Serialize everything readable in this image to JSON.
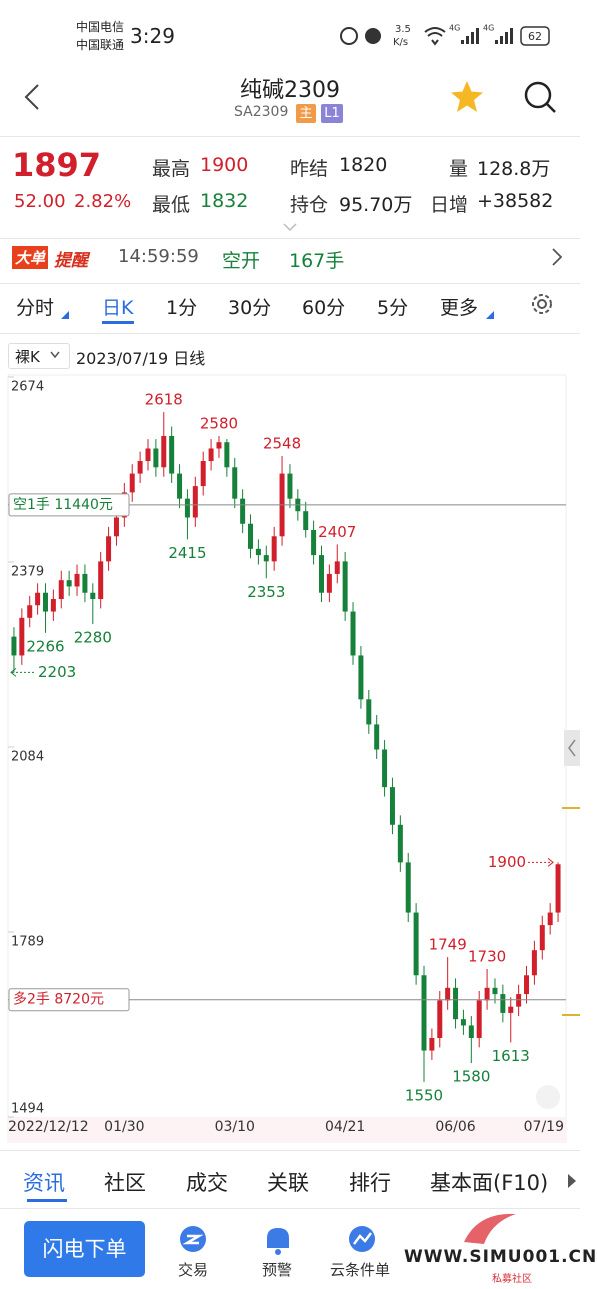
{
  "status_bar": {
    "carrier_1": "中国电信",
    "carrier_2": "中国联通",
    "time": "3:29",
    "speed": "3.5",
    "speed_unit": "K/s",
    "network_1": "4G",
    "network_2": "4G",
    "battery": "62"
  },
  "header": {
    "title": "纯碱2309",
    "code": "SA2309",
    "badges": [
      "主",
      "L1"
    ]
  },
  "quote": {
    "price": "1897",
    "change": "52.00",
    "change_pct": "2.82%",
    "fields": [
      {
        "label": "最高",
        "value": "1900"
      },
      {
        "label": "最低",
        "value": "1832"
      },
      {
        "label": "昨结",
        "value": "1820"
      },
      {
        "label": "持仓",
        "value": "95.70万"
      },
      {
        "label": "量",
        "value": "128.8万"
      },
      {
        "label": "日增",
        "value": "+38582"
      }
    ]
  },
  "alert": {
    "badge_1": "大单",
    "badge_2": "提醒",
    "time": "14:59:59",
    "action": "空开",
    "quantity": "167手"
  },
  "period_tabs": [
    "分时",
    "日K",
    "1分",
    "30分",
    "60分",
    "5分",
    "更多"
  ],
  "chart_header": {
    "mode": "裸K",
    "date": "2023/07/19 日线"
  },
  "chart_data": {
    "type": "candlestick",
    "categories": [
      "2022/12/12",
      null,
      null,
      null,
      null,
      null,
      null,
      null,
      null,
      null,
      null,
      null,
      null,
      null,
      "01/30",
      null,
      null,
      null,
      null,
      null,
      null,
      null,
      null,
      null,
      null,
      null,
      null,
      null,
      "03/10",
      null,
      null,
      null,
      null,
      null,
      null,
      null,
      null,
      null,
      null,
      null,
      null,
      null,
      "04/21",
      null,
      null,
      null,
      null,
      null,
      null,
      null,
      null,
      null,
      null,
      null,
      null,
      null,
      "06/06",
      null,
      null,
      null,
      null,
      null,
      null,
      null,
      null,
      null,
      null,
      null,
      null,
      "07/19"
    ],
    "open": [
      2260,
      2230,
      2290,
      2310,
      2330,
      2300,
      2320,
      2350,
      2340,
      2360,
      2330,
      2320,
      2380,
      2420,
      2450,
      2490,
      2520,
      2540,
      2560,
      2530,
      2580,
      2520,
      2480,
      2450,
      2500,
      2540,
      2560,
      2570,
      2530,
      2480,
      2440,
      2400,
      2390,
      2380,
      2420,
      2520,
      2480,
      2460,
      2430,
      2390,
      2330,
      2360,
      2380,
      2300,
      2230,
      2160,
      2120,
      2080,
      2020,
      1960,
      1900,
      1820,
      1720,
      1600,
      1620,
      1680,
      1700,
      1650,
      1640,
      1620,
      1680,
      1700,
      1690,
      1660,
      1670,
      1690,
      1720,
      1760,
      1800,
      1820
    ],
    "high": [
      2275,
      2305,
      2325,
      2345,
      2345,
      2335,
      2365,
      2365,
      2375,
      2375,
      2345,
      2395,
      2435,
      2465,
      2505,
      2535,
      2555,
      2575,
      2575,
      2618,
      2595,
      2535,
      2495,
      2515,
      2555,
      2575,
      2580,
      2575,
      2545,
      2495,
      2455,
      2415,
      2405,
      2435,
      2548,
      2535,
      2495,
      2475,
      2445,
      2405,
      2375,
      2407,
      2395,
      2315,
      2245,
      2175,
      2135,
      2095,
      2035,
      1975,
      1915,
      1835,
      1735,
      1635,
      1695,
      1749,
      1715,
      1665,
      1655,
      1695,
      1730,
      1715,
      1705,
      1685,
      1705,
      1735,
      1775,
      1815,
      1835,
      1900
    ],
    "low": [
      2203,
      2215,
      2275,
      2295,
      2266,
      2285,
      2305,
      2325,
      2325,
      2315,
      2280,
      2305,
      2365,
      2405,
      2435,
      2475,
      2505,
      2525,
      2515,
      2515,
      2505,
      2465,
      2415,
      2435,
      2485,
      2525,
      2545,
      2515,
      2465,
      2425,
      2385,
      2375,
      2353,
      2365,
      2405,
      2465,
      2445,
      2418,
      2375,
      2315,
      2315,
      2345,
      2285,
      2215,
      2145,
      2105,
      2065,
      2005,
      1945,
      1885,
      1805,
      1705,
      1550,
      1585,
      1605,
      1665,
      1635,
      1625,
      1580,
      1605,
      1665,
      1675,
      1645,
      1613,
      1655,
      1675,
      1705,
      1745,
      1785,
      1805
    ],
    "close": [
      2230,
      2290,
      2310,
      2330,
      2300,
      2320,
      2350,
      2340,
      2360,
      2330,
      2320,
      2380,
      2420,
      2450,
      2490,
      2520,
      2540,
      2560,
      2530,
      2580,
      2520,
      2480,
      2450,
      2500,
      2540,
      2560,
      2570,
      2530,
      2480,
      2440,
      2400,
      2390,
      2380,
      2420,
      2520,
      2480,
      2460,
      2430,
      2390,
      2330,
      2360,
      2380,
      2300,
      2230,
      2160,
      2120,
      2080,
      2020,
      1960,
      1900,
      1820,
      1720,
      1600,
      1620,
      1680,
      1700,
      1650,
      1640,
      1620,
      1680,
      1700,
      1690,
      1660,
      1670,
      1690,
      1720,
      1760,
      1800,
      1820,
      1897
    ],
    "up_color": "#d11f2b",
    "down_color": "#16813a",
    "ylim": [
      1494,
      2674
    ],
    "yticks": [
      1494,
      1789,
      2084,
      2379,
      2674
    ],
    "grid": false,
    "high_labels": [
      2618,
      2580,
      2548,
      2407,
      1749,
      1730,
      1900
    ],
    "low_labels": [
      2203,
      2266,
      2280,
      2415,
      2353,
      1550,
      1580,
      1613
    ],
    "positions": [
      {
        "label": "空1手 11440元",
        "price": 2470,
        "color": "#16813a"
      },
      {
        "label": "多2手 8720元",
        "price": 1681,
        "color": "#d11f2b"
      }
    ]
  },
  "bottom_tabs": [
    "资讯",
    "社区",
    "成交",
    "关联",
    "排行",
    "基本面(F10)"
  ],
  "bottom_bar": {
    "button": "闪电下单",
    "items": [
      "交易",
      "预警",
      "云条件单"
    ]
  },
  "watermark": {
    "site": "WWW.SIMU001.CN",
    "name": "私募社区"
  }
}
